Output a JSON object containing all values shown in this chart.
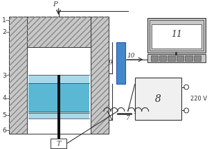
{
  "bg_color": "#ffffff",
  "hatch_color": "#888888",
  "blue_fill": "#5bb8d4",
  "blue_light": "#a8d8ea",
  "gray_fill": "#c8c8c8",
  "box8_fill": "#f0f0f0",
  "blue_device": "#4488cc",
  "line_color": "#333333",
  "white": "#ffffff",
  "labels": {
    "P": "P",
    "1": "1",
    "2": "2",
    "3": "3",
    "4": "4",
    "5": "5",
    "6": "6",
    "7": "7",
    "8": "8",
    "9": "9",
    "10": "10",
    "11": "11",
    "T": "T",
    "220V": "220 V"
  },
  "figsize": [
    3.12,
    2.15
  ],
  "dpi": 100,
  "xlim": [
    0,
    312
  ],
  "ylim": [
    0,
    215
  ]
}
